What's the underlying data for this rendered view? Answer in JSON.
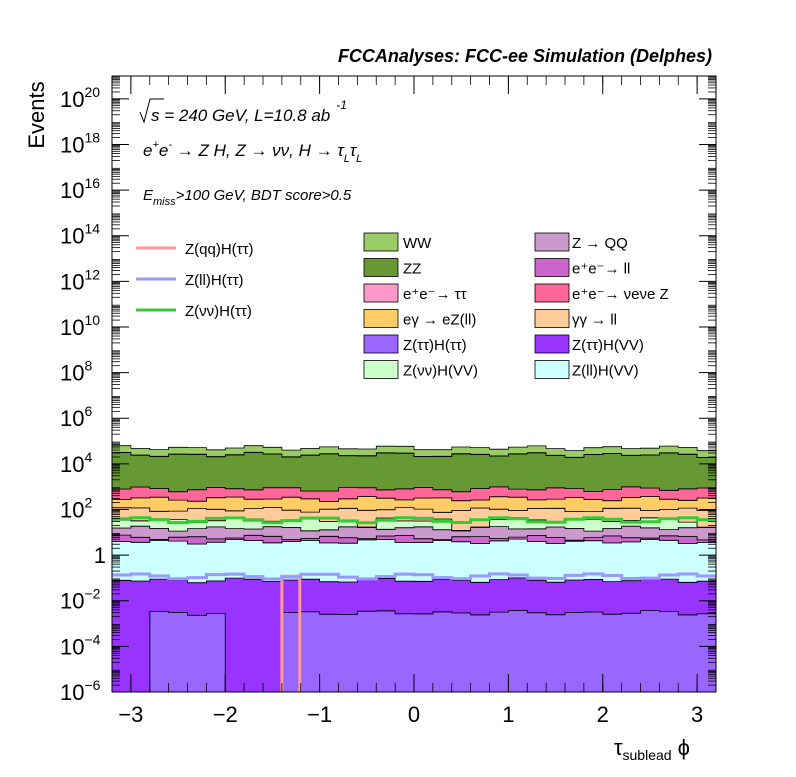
{
  "chart_data": {
    "type": "area",
    "title": "FCCAnalyses: FCC-ee Simulation (Delphes)",
    "xlabel": "τ_sublead ϕ",
    "ylabel": "Events",
    "xlim": [
      -3.2,
      3.2
    ],
    "ylim_log10": [
      -6,
      21
    ],
    "y_scale": "log",
    "x_ticks": [
      "−3",
      "−2",
      "−1",
      "0",
      "1",
      "2",
      "3"
    ],
    "y_ticks": [
      {
        "label": "10",
        "sup": "−6",
        "exp": -6
      },
      {
        "label": "10",
        "sup": "−4",
        "exp": -4
      },
      {
        "label": "10",
        "sup": "−2",
        "exp": -2
      },
      {
        "label": "1",
        "sup": "",
        "exp": 0
      },
      {
        "label": "10",
        "sup": "2",
        "exp": 2
      },
      {
        "label": "10",
        "sup": "4",
        "exp": 4
      },
      {
        "label": "10",
        "sup": "6",
        "exp": 6
      },
      {
        "label": "10",
        "sup": "8",
        "exp": 8
      },
      {
        "label": "10",
        "sup": "10",
        "exp": 10
      },
      {
        "label": "10",
        "sup": "12",
        "exp": 12
      },
      {
        "label": "10",
        "sup": "14",
        "exp": 14
      },
      {
        "label": "10",
        "sup": "16",
        "exp": 16
      },
      {
        "label": "10",
        "sup": "18",
        "exp": 18
      },
      {
        "label": "10",
        "sup": "20",
        "exp": 20
      }
    ],
    "annotations": {
      "line1": "√s = 240 GeV, L=10.8 ab⁻¹",
      "line2": "e⁺e⁻ → Z H, Z → νν, H → τLτL",
      "line3": "E_miss>100 GeV, BDT score>0.5"
    },
    "stack_order_bottom_to_top": [
      "Z(ττ)H(ττ)",
      "Z(ττ)H(VV)",
      "Z(ll)H(VV)",
      "e⁺e⁻→ ll",
      "Z → QQ",
      "Z(νν)H(VV)",
      "γγ → ll",
      "eγ → eZ(ll)",
      "e⁺e⁻→ νeνe Z",
      "ZZ",
      "e⁺e⁻→ ττ",
      "WW"
    ],
    "stacked_series": [
      {
        "name": "WW",
        "color": "#99cc66",
        "total": 50000.0
      },
      {
        "name": "ZZ",
        "color": "#669933",
        "total": 25000.0
      },
      {
        "name": "e⁺e⁻→ ττ",
        "color": "#ff99cc",
        "total": 15000.0
      },
      {
        "name": "e⁺e⁻→ νeνe Z",
        "color": "#ff6699",
        "total": 800
      },
      {
        "name": "eγ → eZ(ll)",
        "color": "#ffcc66",
        "total": 300
      },
      {
        "name": "γγ → ll",
        "color": "#ffcc99",
        "total": 100
      },
      {
        "name": "Z(νν)H(VV)",
        "color": "#ccffcc",
        "total": 35
      },
      {
        "name": "Z → QQ",
        "color": "#cc99cc",
        "total": 15
      },
      {
        "name": "e⁺e⁻→ ll",
        "color": "#cc66cc",
        "total": 6
      },
      {
        "name": "Z(ll)H(VV)",
        "color": "#ccffff",
        "total": 4.0
      },
      {
        "name": "Z(ττ)H(VV)",
        "color": "#9933ff",
        "total": 0.08
      },
      {
        "name": "Z(ττ)H(ττ)",
        "color": "#9966ff",
        "total": 0.003
      }
    ],
    "overlay_series": [
      {
        "name": "Z(qq)H(ττ)",
        "color": "#ff9999",
        "note": "spike near x = -1.3 only"
      },
      {
        "name": "Z(ll)H(ττ)",
        "color": "#9999ff",
        "level": 0.12
      },
      {
        "name": "Z(νν)H(ττ)",
        "color": "#33cc33",
        "level": 35
      }
    ],
    "legend": {
      "lines": [
        {
          "label": "Z(qq)H(ττ)",
          "color": "#ff9999"
        },
        {
          "label": "Z(ll)H(ττ)",
          "color": "#9999ff"
        },
        {
          "label": "Z(νν)H(ττ)",
          "color": "#33cc33"
        }
      ],
      "col1": [
        {
          "label": "WW",
          "color": "#99cc66"
        },
        {
          "label": "ZZ",
          "color": "#669933"
        },
        {
          "label": "e⁺e⁻→ ττ",
          "color": "#ff99cc"
        },
        {
          "label": "eγ → eZ(ll)",
          "color": "#ffcc66"
        },
        {
          "label": "Z(ττ)H(ττ)",
          "color": "#9966ff"
        },
        {
          "label": "Z(νν)H(VV)",
          "color": "#ccffcc"
        }
      ],
      "col2": [
        {
          "label": "Z → QQ",
          "color": "#cc99cc"
        },
        {
          "label": "e⁺e⁻→ ll",
          "color": "#cc66cc"
        },
        {
          "label": "e⁺e⁻→ νeνe Z",
          "color": "#ff6699"
        },
        {
          "label": "γγ → ll",
          "color": "#ffcc99"
        },
        {
          "label": "Z(ττ)H(VV)",
          "color": "#9933ff"
        },
        {
          "label": "Z(ll)H(VV)",
          "color": "#ccffff"
        }
      ]
    }
  }
}
